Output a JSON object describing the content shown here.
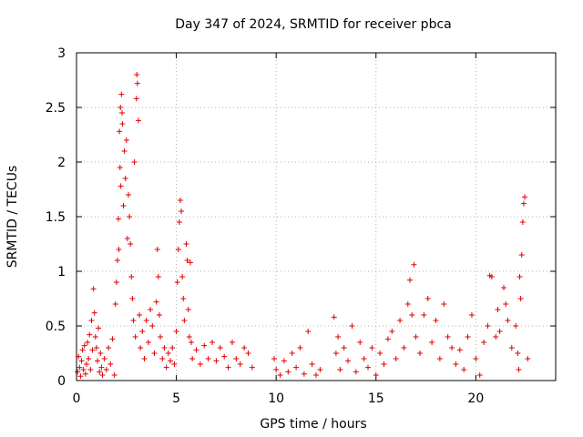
{
  "chart_data": {
    "type": "scatter",
    "title": "Day 347 of 2024, SRMTID for receiver pbca",
    "xlabel": "GPS time / hours",
    "ylabel": "SRMTID / TECUs",
    "xlim": [
      0,
      24
    ],
    "ylim": [
      0,
      3
    ],
    "x_ticks": [
      0,
      5,
      10,
      15,
      20
    ],
    "x_tick_labels": [
      "0",
      "5",
      "10",
      "15",
      "20"
    ],
    "y_ticks": [
      0,
      0.5,
      1,
      1.5,
      2,
      2.5,
      3
    ],
    "y_tick_labels": [
      "0",
      "0.5",
      "1",
      "1.5",
      "2",
      "2.5",
      "3"
    ],
    "grid": true,
    "marker": "+",
    "color": "#e00000",
    "series": [
      {
        "name": "SRMTID",
        "points": [
          [
            0.05,
            0.08
          ],
          [
            0.1,
            0.22
          ],
          [
            0.15,
            0.12
          ],
          [
            0.2,
            0.04
          ],
          [
            0.25,
            0.18
          ],
          [
            0.3,
            0.28
          ],
          [
            0.35,
            0.1
          ],
          [
            0.4,
            0.32
          ],
          [
            0.45,
            0.06
          ],
          [
            0.5,
            0.15
          ],
          [
            0.55,
            0.35
          ],
          [
            0.6,
            0.2
          ],
          [
            0.65,
            0.42
          ],
          [
            0.7,
            0.1
          ],
          [
            0.75,
            0.55
          ],
          [
            0.8,
            0.28
          ],
          [
            0.85,
            0.84
          ],
          [
            0.9,
            0.62
          ],
          [
            0.95,
            0.4
          ],
          [
            1.0,
            0.3
          ],
          [
            1.05,
            0.18
          ],
          [
            1.1,
            0.48
          ],
          [
            1.15,
            0.08
          ],
          [
            1.2,
            0.25
          ],
          [
            1.25,
            0.12
          ],
          [
            1.3,
            0.05
          ],
          [
            1.4,
            0.2
          ],
          [
            1.5,
            0.1
          ],
          [
            1.6,
            0.3
          ],
          [
            1.7,
            0.15
          ],
          [
            1.8,
            0.38
          ],
          [
            1.9,
            0.05
          ],
          [
            1.95,
            0.7
          ],
          [
            2.0,
            0.9
          ],
          [
            2.05,
            1.1
          ],
          [
            2.1,
            1.48
          ],
          [
            2.12,
            1.2
          ],
          [
            2.15,
            2.28
          ],
          [
            2.18,
            1.95
          ],
          [
            2.2,
            2.5
          ],
          [
            2.22,
            1.78
          ],
          [
            2.25,
            2.62
          ],
          [
            2.28,
            2.45
          ],
          [
            2.3,
            2.35
          ],
          [
            2.35,
            1.6
          ],
          [
            2.4,
            2.1
          ],
          [
            2.45,
            1.85
          ],
          [
            2.5,
            2.2
          ],
          [
            2.55,
            1.3
          ],
          [
            2.6,
            1.7
          ],
          [
            2.65,
            1.5
          ],
          [
            2.7,
            1.25
          ],
          [
            2.75,
            0.95
          ],
          [
            2.8,
            0.75
          ],
          [
            2.85,
            0.55
          ],
          [
            2.9,
            2.0
          ],
          [
            2.95,
            0.4
          ],
          [
            3.0,
            2.58
          ],
          [
            3.02,
            2.8
          ],
          [
            3.05,
            2.72
          ],
          [
            3.1,
            2.38
          ],
          [
            3.15,
            0.6
          ],
          [
            3.2,
            0.3
          ],
          [
            3.3,
            0.45
          ],
          [
            3.4,
            0.2
          ],
          [
            3.5,
            0.55
          ],
          [
            3.6,
            0.35
          ],
          [
            3.7,
            0.65
          ],
          [
            3.8,
            0.5
          ],
          [
            3.9,
            0.25
          ],
          [
            4.0,
            0.72
          ],
          [
            4.05,
            1.2
          ],
          [
            4.1,
            0.95
          ],
          [
            4.15,
            0.6
          ],
          [
            4.2,
            0.4
          ],
          [
            4.3,
            0.2
          ],
          [
            4.4,
            0.3
          ],
          [
            4.5,
            0.12
          ],
          [
            4.6,
            0.25
          ],
          [
            4.7,
            0.18
          ],
          [
            4.8,
            0.3
          ],
          [
            4.9,
            0.15
          ],
          [
            5.0,
            0.45
          ],
          [
            5.05,
            0.9
          ],
          [
            5.1,
            1.2
          ],
          [
            5.15,
            1.45
          ],
          [
            5.2,
            1.65
          ],
          [
            5.25,
            1.55
          ],
          [
            5.3,
            0.95
          ],
          [
            5.35,
            0.75
          ],
          [
            5.4,
            0.55
          ],
          [
            5.5,
            1.25
          ],
          [
            5.55,
            1.1
          ],
          [
            5.6,
            0.65
          ],
          [
            5.65,
            0.4
          ],
          [
            5.7,
            1.08
          ],
          [
            5.75,
            0.35
          ],
          [
            5.8,
            0.2
          ],
          [
            6.0,
            0.28
          ],
          [
            6.2,
            0.15
          ],
          [
            6.4,
            0.32
          ],
          [
            6.6,
            0.2
          ],
          [
            6.8,
            0.35
          ],
          [
            7.0,
            0.18
          ],
          [
            7.2,
            0.3
          ],
          [
            7.4,
            0.22
          ],
          [
            7.6,
            0.12
          ],
          [
            7.8,
            0.35
          ],
          [
            8.0,
            0.2
          ],
          [
            8.2,
            0.15
          ],
          [
            8.4,
            0.3
          ],
          [
            8.6,
            0.25
          ],
          [
            8.8,
            0.12
          ],
          [
            9.9,
            0.2
          ],
          [
            10.0,
            0.1
          ],
          [
            10.2,
            0.05
          ],
          [
            10.4,
            0.18
          ],
          [
            10.6,
            0.08
          ],
          [
            10.8,
            0.25
          ],
          [
            11.0,
            0.12
          ],
          [
            11.2,
            0.3
          ],
          [
            11.4,
            0.06
          ],
          [
            11.6,
            0.45
          ],
          [
            11.8,
            0.15
          ],
          [
            12.0,
            0.05
          ],
          [
            12.2,
            0.1
          ],
          [
            12.9,
            0.58
          ],
          [
            13.0,
            0.25
          ],
          [
            13.1,
            0.4
          ],
          [
            13.2,
            0.1
          ],
          [
            13.4,
            0.3
          ],
          [
            13.6,
            0.18
          ],
          [
            13.8,
            0.5
          ],
          [
            14.0,
            0.08
          ],
          [
            14.2,
            0.35
          ],
          [
            14.4,
            0.2
          ],
          [
            14.6,
            0.12
          ],
          [
            14.8,
            0.3
          ],
          [
            15.0,
            0.05
          ],
          [
            15.2,
            0.25
          ],
          [
            15.4,
            0.15
          ],
          [
            15.6,
            0.38
          ],
          [
            15.8,
            0.45
          ],
          [
            16.0,
            0.2
          ],
          [
            16.2,
            0.55
          ],
          [
            16.4,
            0.3
          ],
          [
            16.6,
            0.7
          ],
          [
            16.7,
            0.92
          ],
          [
            16.8,
            0.6
          ],
          [
            16.9,
            1.06
          ],
          [
            17.0,
            0.4
          ],
          [
            17.2,
            0.25
          ],
          [
            17.4,
            0.6
          ],
          [
            17.6,
            0.75
          ],
          [
            17.8,
            0.35
          ],
          [
            18.0,
            0.55
          ],
          [
            18.2,
            0.2
          ],
          [
            18.4,
            0.7
          ],
          [
            18.6,
            0.4
          ],
          [
            18.8,
            0.3
          ],
          [
            19.0,
            0.15
          ],
          [
            19.2,
            0.28
          ],
          [
            19.4,
            0.1
          ],
          [
            19.6,
            0.4
          ],
          [
            19.8,
            0.6
          ],
          [
            20.0,
            0.2
          ],
          [
            20.2,
            0.05
          ],
          [
            20.4,
            0.35
          ],
          [
            20.6,
            0.5
          ],
          [
            20.7,
            0.96
          ],
          [
            20.8,
            0.95
          ],
          [
            21.0,
            0.4
          ],
          [
            21.1,
            0.65
          ],
          [
            21.2,
            0.45
          ],
          [
            21.4,
            0.85
          ],
          [
            21.5,
            0.7
          ],
          [
            21.6,
            0.55
          ],
          [
            21.8,
            0.3
          ],
          [
            22.0,
            0.5
          ],
          [
            22.1,
            0.25
          ],
          [
            22.15,
            0.1
          ],
          [
            22.2,
            0.95
          ],
          [
            22.25,
            0.75
          ],
          [
            22.3,
            1.15
          ],
          [
            22.35,
            1.45
          ],
          [
            22.4,
            1.62
          ],
          [
            22.45,
            1.68
          ],
          [
            22.6,
            0.2
          ]
        ]
      }
    ]
  }
}
